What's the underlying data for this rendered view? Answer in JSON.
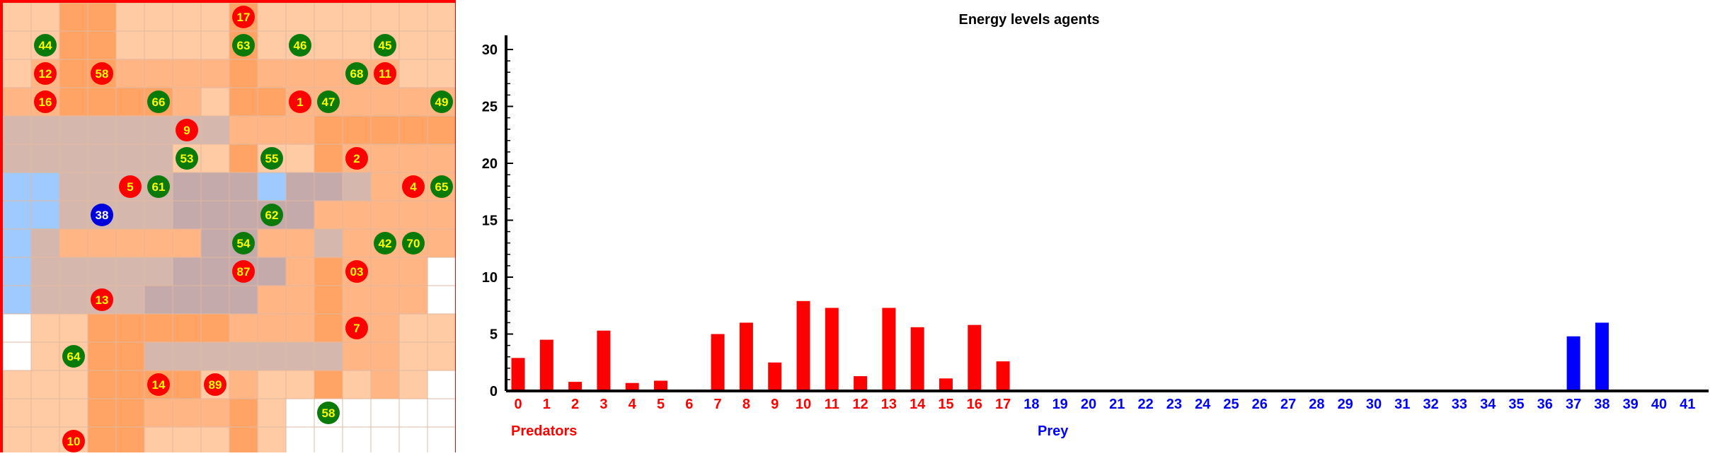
{
  "chart_data": {
    "type": "bar",
    "title": "Energy levels agents",
    "ylim": [
      0,
      30
    ],
    "yticks": [
      0,
      5,
      10,
      15,
      20,
      25,
      30
    ],
    "categories": [
      "0",
      "1",
      "2",
      "3",
      "4",
      "5",
      "6",
      "7",
      "8",
      "9",
      "10",
      "11",
      "12",
      "13",
      "14",
      "15",
      "16",
      "17",
      "18",
      "19",
      "20",
      "21",
      "22",
      "23",
      "24",
      "25",
      "26",
      "27",
      "28",
      "29",
      "30",
      "31",
      "32",
      "33",
      "34",
      "35",
      "36",
      "37",
      "38",
      "39",
      "40",
      "41"
    ],
    "series": [
      {
        "name": "Predators",
        "color": "#ff0000",
        "values": [
          2.9,
          4.5,
          0.8,
          5.3,
          0.7,
          0.9,
          0,
          5.0,
          6.0,
          2.5,
          7.9,
          7.3,
          1.3,
          7.3,
          5.6,
          1.1,
          5.8,
          2.6,
          0,
          0,
          0,
          0,
          0,
          0,
          0,
          0,
          0,
          0,
          0,
          0,
          0,
          0,
          0,
          0,
          0,
          0,
          0,
          0,
          0,
          0,
          0,
          0
        ]
      },
      {
        "name": "Prey",
        "color": "#0000ff",
        "values": [
          0,
          0,
          0,
          0,
          0,
          0,
          0,
          0,
          0,
          0,
          0,
          0,
          0,
          0,
          0,
          0,
          0,
          0,
          0,
          0,
          0,
          0,
          0,
          0,
          0,
          0,
          0,
          0,
          0,
          0,
          0,
          0,
          0,
          0,
          0,
          0,
          0,
          4.8,
          6.0,
          0,
          0,
          0
        ]
      }
    ],
    "predator_indices": [
      0,
      17
    ],
    "prey_indices": [
      18,
      41
    ],
    "group_labels": {
      "predators": "Predators",
      "prey": "Prey"
    }
  },
  "grid": {
    "rows": 16,
    "cols": 16,
    "border_color": "#ff0000",
    "palette": {
      "W": "#ffffff",
      "L": "#ffcba5",
      "M": "#ffb584",
      "O": "#ffa465",
      "G": "#d5b7ad",
      "P": "#c4aaaa",
      "B": "#9ecaff"
    },
    "cells": [
      "LLOOLLLLOLLLLLLL",
      "LLOOLLLLOLLLLLLL",
      "LMOOMMMMOMMMMMLL",
      "MMOOOOMLOOMMMMMM",
      "GGGGGGGGMMMOOOOO",
      "GGGGGGLLOLLOMMMM",
      "BBGGGGPPPBPPGMMM",
      "BBGGGGPPPPPMMMMM",
      "BGMMMMMPPMMGMMMM",
      "BGGGGGPPPPMOMMMW",
      "BGGGGPPPPMMOMMMW",
      "WLLOOOOOMMMOMMLL",
      "WLLOOGGGGGGGMMLL",
      "LLLOOOOLMLLOLMLW",
      "LLLOOMMMOLWWWWWW",
      "LLLOOLLLOLWWWWWW"
    ],
    "agents": [
      {
        "label": "17",
        "kind": "predator",
        "col": 8,
        "row": 0
      },
      {
        "label": "44",
        "kind": "prey",
        "col": 1,
        "row": 1
      },
      {
        "label": "63",
        "kind": "prey",
        "col": 8,
        "row": 1
      },
      {
        "label": "46",
        "kind": "prey",
        "col": 10,
        "row": 1
      },
      {
        "label": "45",
        "kind": "prey",
        "col": 13,
        "row": 1
      },
      {
        "label": "12",
        "kind": "predator",
        "col": 1,
        "row": 2
      },
      {
        "label": "58",
        "kind": "predator",
        "col": 3,
        "row": 2
      },
      {
        "label": "68",
        "kind": "prey",
        "col": 12,
        "row": 2
      },
      {
        "label": "11",
        "kind": "predator",
        "col": 13,
        "row": 2
      },
      {
        "label": "16",
        "kind": "predator",
        "col": 1,
        "row": 3
      },
      {
        "label": "66",
        "kind": "prey",
        "col": 5,
        "row": 3
      },
      {
        "label": "1",
        "kind": "predator",
        "col": 10,
        "row": 3
      },
      {
        "label": "47",
        "kind": "prey",
        "col": 11,
        "row": 3
      },
      {
        "label": "49",
        "kind": "prey",
        "col": 15,
        "row": 3
      },
      {
        "label": "9",
        "kind": "predator",
        "col": 6,
        "row": 4
      },
      {
        "label": "53",
        "kind": "prey",
        "col": 6,
        "row": 5
      },
      {
        "label": "55",
        "kind": "prey",
        "col": 9,
        "row": 5
      },
      {
        "label": "2",
        "kind": "predator",
        "col": 12,
        "row": 5
      },
      {
        "label": "5",
        "kind": "predator",
        "col": 4,
        "row": 6
      },
      {
        "label": "61",
        "kind": "prey",
        "col": 5,
        "row": 6
      },
      {
        "label": "4",
        "kind": "predator",
        "col": 14,
        "row": 6
      },
      {
        "label": "65",
        "kind": "prey",
        "col": 15,
        "row": 6
      },
      {
        "label": "38",
        "kind": "blue",
        "col": 3,
        "row": 7
      },
      {
        "label": "62",
        "kind": "prey",
        "col": 9,
        "row": 7
      },
      {
        "label": "54",
        "kind": "prey",
        "col": 8,
        "row": 8
      },
      {
        "label": "42",
        "kind": "prey",
        "col": 13,
        "row": 8
      },
      {
        "label": "70",
        "kind": "prey",
        "col": 14,
        "row": 8
      },
      {
        "label": "87",
        "kind": "predator",
        "col": 8,
        "row": 9
      },
      {
        "label": "03",
        "kind": "predator",
        "col": 12,
        "row": 9
      },
      {
        "label": "13",
        "kind": "predator",
        "col": 3,
        "row": 10
      },
      {
        "label": "7",
        "kind": "predator",
        "col": 12,
        "row": 11
      },
      {
        "label": "64",
        "kind": "prey",
        "col": 2,
        "row": 12
      },
      {
        "label": "14",
        "kind": "predator",
        "col": 5,
        "row": 13
      },
      {
        "label": "89",
        "kind": "predator",
        "col": 7,
        "row": 13
      },
      {
        "label": "58",
        "kind": "prey",
        "col": 11,
        "row": 14
      },
      {
        "label": "10",
        "kind": "predator",
        "col": 2,
        "row": 15
      }
    ],
    "agent_colors": {
      "predator": "#ff0000",
      "prey": "#0a7a0a",
      "blue": "#0000dd",
      "text": "#ffff00",
      "blue_text": "#ffffff"
    }
  }
}
